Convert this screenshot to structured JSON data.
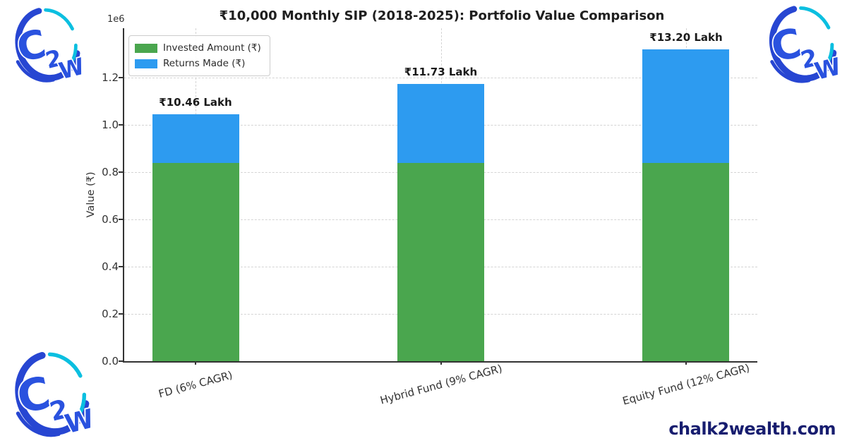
{
  "page": {
    "background": "#ffffff"
  },
  "watermark": {
    "text": "chalk2wealth.com",
    "color": "#171d6f"
  },
  "logo": {
    "letters": {
      "c": "C",
      "two": "2",
      "w": "W"
    },
    "ring_blue": "#2746d2",
    "ring_cyan": "#0bbfe0",
    "letter_blue": "#2a52df"
  },
  "chart_data": {
    "type": "bar",
    "stacked": true,
    "title": "₹10,000 Monthly SIP (2018-2025): Portfolio Value Comparison",
    "categories": [
      "FD (6% CAGR)",
      "Hybrid Fund (9% CAGR)",
      "Equity Fund (12% CAGR)"
    ],
    "series": [
      {
        "name": "Invested Amount (₹)",
        "color": "#4aa64e",
        "values": [
          840000,
          840000,
          840000
        ]
      },
      {
        "name": "Returns Made (₹)",
        "color": "#2d9bf0",
        "values": [
          206000,
          333000,
          480000
        ]
      }
    ],
    "totals": [
      1046000,
      1173000,
      1320000
    ],
    "total_labels": [
      "₹10.46 Lakh",
      "₹11.73 Lakh",
      "₹13.20 Lakh"
    ],
    "xlabel": "",
    "ylabel": "Value (₹)",
    "y_offset_label": "1e6",
    "yticks": [
      0,
      200000,
      400000,
      600000,
      800000,
      1000000,
      1200000
    ],
    "ytick_labels": [
      "0.0",
      "0.2",
      "0.4",
      "0.6",
      "0.8",
      "1.0",
      "1.2"
    ],
    "ylim": [
      0,
      1410000
    ],
    "grid": "dashed",
    "grid_color": "#d4d4d4",
    "axis_color": "#333333",
    "legend": {
      "position": "upper left",
      "entries": [
        "Invested Amount (₹)",
        "Returns Made (₹)"
      ]
    }
  }
}
